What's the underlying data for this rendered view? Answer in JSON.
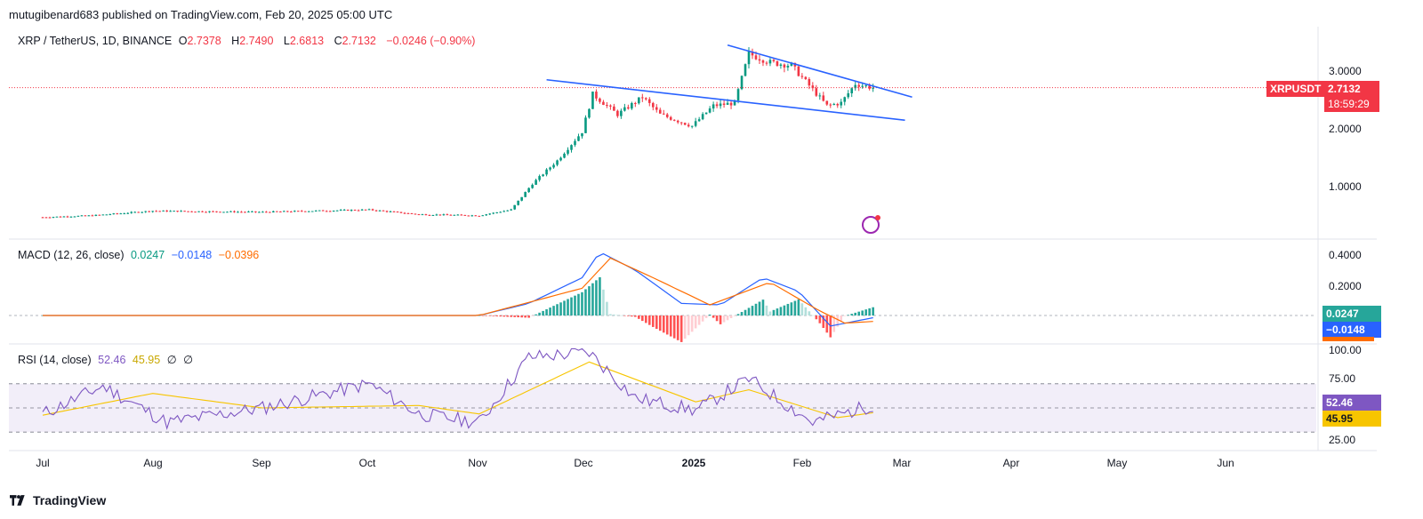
{
  "header": {
    "published": "mutugibenard683 published on TradingView.com, Feb 20, 2025 05:00 UTC"
  },
  "price_legend": {
    "symbol": "XRP / TetherUS, 1D, BINANCE",
    "open_label": "O",
    "open": "2.7378",
    "high_label": "H",
    "high": "2.7490",
    "low_label": "L",
    "low": "2.6813",
    "close_label": "C",
    "close": "2.7132",
    "change": "−0.0246 (−0.90%)"
  },
  "macd_legend": {
    "name": "MACD (12, 26, close)",
    "hist": "0.0247",
    "macd": "−0.0148",
    "signal": "−0.0396"
  },
  "rsi_legend": {
    "name": "RSI (14, close)",
    "rsi": "52.46",
    "ma": "45.95",
    "ph1": "∅",
    "ph2": "∅"
  },
  "price_badges": {
    "ticker": "XRPUSDT",
    "price": "2.7132",
    "countdown": "18:59:29"
  },
  "macd_badges": {
    "hist": "0.0247",
    "macd": "−0.0148"
  },
  "rsi_badges": {
    "rsi": "52.46",
    "ma": "45.95"
  },
  "price_axis": [
    "3.0000",
    "2.0000",
    "1.0000"
  ],
  "macd_axis": [
    "0.4000",
    "0.2000"
  ],
  "rsi_axis": [
    "100.00",
    "75.00",
    "25.00"
  ],
  "months": [
    "Jul",
    "Aug",
    "Sep",
    "Oct",
    "Nov",
    "Dec",
    "2025",
    "Feb",
    "Mar",
    "Apr",
    "May",
    "Jun"
  ],
  "footer": {
    "brand": "TradingView"
  },
  "colors": {
    "up": "#089981",
    "down": "#f23645",
    "macd": "#2962ff",
    "signal": "#ff6d00",
    "rsi": "#7e57c2",
    "rsi_ma": "#f7c500",
    "trendline": "#2962ff"
  },
  "chart_data": [
    {
      "type": "candlestick",
      "symbol": "XRP / TetherUS",
      "interval": "1D",
      "exchange": "BINANCE",
      "last": {
        "open": 2.7378,
        "high": 2.749,
        "low": 2.6813,
        "close": 2.7132
      },
      "ylim": [
        0.2,
        3.8
      ],
      "approx_close_path": [
        {
          "date": "2024-07-01",
          "close": 0.47
        },
        {
          "date": "2024-07-15",
          "close": 0.5
        },
        {
          "date": "2024-08-01",
          "close": 0.58
        },
        {
          "date": "2024-08-15",
          "close": 0.57
        },
        {
          "date": "2024-09-01",
          "close": 0.56
        },
        {
          "date": "2024-09-15",
          "close": 0.58
        },
        {
          "date": "2024-10-01",
          "close": 0.6
        },
        {
          "date": "2024-10-15",
          "close": 0.52
        },
        {
          "date": "2024-11-01",
          "close": 0.5
        },
        {
          "date": "2024-11-10",
          "close": 0.6
        },
        {
          "date": "2024-11-16",
          "close": 1.05
        },
        {
          "date": "2024-11-23",
          "close": 1.45
        },
        {
          "date": "2024-11-30",
          "close": 1.95
        },
        {
          "date": "2024-12-03",
          "close": 2.6
        },
        {
          "date": "2024-12-10",
          "close": 2.25
        },
        {
          "date": "2024-12-17",
          "close": 2.55
        },
        {
          "date": "2024-12-22",
          "close": 2.25
        },
        {
          "date": "2024-12-31",
          "close": 2.05
        },
        {
          "date": "2025-01-06",
          "close": 2.4
        },
        {
          "date": "2025-01-12",
          "close": 2.45
        },
        {
          "date": "2025-01-16",
          "close": 3.3
        },
        {
          "date": "2025-01-22",
          "close": 3.15
        },
        {
          "date": "2025-01-28",
          "close": 3.1
        },
        {
          "date": "2025-02-02",
          "close": 2.75
        },
        {
          "date": "2025-02-07",
          "close": 2.4
        },
        {
          "date": "2025-02-11",
          "close": 2.45
        },
        {
          "date": "2025-02-15",
          "close": 2.78
        },
        {
          "date": "2025-02-20",
          "close": 2.7132
        }
      ],
      "annotations": [
        {
          "type": "trendline",
          "from": {
            "date": "2024-11-20",
            "price": 2.85
          },
          "to": {
            "date": "2025-03-01",
            "price": 2.15
          }
        },
        {
          "type": "trendline",
          "from": {
            "date": "2025-01-10",
            "price": 3.45
          },
          "to": {
            "date": "2025-03-03",
            "price": 2.55
          }
        }
      ]
    },
    {
      "type": "line",
      "title": "MACD (12, 26, close)",
      "latest": {
        "histogram": 0.0247,
        "macd": -0.0148,
        "signal": -0.0396
      },
      "series": [
        {
          "name": "MACD",
          "points": [
            {
              "date": "2024-07-01",
              "value": 0.0
            },
            {
              "date": "2024-11-01",
              "value": 0.0
            },
            {
              "date": "2024-11-15",
              "value": 0.08
            },
            {
              "date": "2024-11-30",
              "value": 0.25
            },
            {
              "date": "2024-12-05",
              "value": 0.42
            },
            {
              "date": "2024-12-15",
              "value": 0.3
            },
            {
              "date": "2024-12-28",
              "value": 0.08
            },
            {
              "date": "2025-01-08",
              "value": 0.07
            },
            {
              "date": "2025-01-20",
              "value": 0.25
            },
            {
              "date": "2025-01-30",
              "value": 0.16
            },
            {
              "date": "2025-02-08",
              "value": -0.07
            },
            {
              "date": "2025-02-20",
              "value": -0.0148
            }
          ]
        },
        {
          "name": "Signal",
          "points": [
            {
              "date": "2024-07-01",
              "value": 0.0
            },
            {
              "date": "2024-11-01",
              "value": 0.0
            },
            {
              "date": "2024-11-30",
              "value": 0.18
            },
            {
              "date": "2024-12-08",
              "value": 0.38
            },
            {
              "date": "2024-12-20",
              "value": 0.25
            },
            {
              "date": "2025-01-05",
              "value": 0.07
            },
            {
              "date": "2025-01-22",
              "value": 0.22
            },
            {
              "date": "2025-02-05",
              "value": 0.03
            },
            {
              "date": "2025-02-12",
              "value": -0.05
            },
            {
              "date": "2025-02-20",
              "value": -0.0396
            }
          ]
        }
      ]
    },
    {
      "type": "line",
      "title": "RSI (14, close)",
      "latest": {
        "rsi": 52.46,
        "rsi_ma": 45.95
      },
      "bands": [
        30,
        50,
        70
      ],
      "ylim": [
        20,
        100
      ],
      "series": [
        {
          "name": "RSI",
          "points": [
            {
              "date": "2024-07-01",
              "value": 45
            },
            {
              "date": "2024-07-18",
              "value": 68
            },
            {
              "date": "2024-08-05",
              "value": 38
            },
            {
              "date": "2024-09-01",
              "value": 50
            },
            {
              "date": "2024-10-01",
              "value": 70
            },
            {
              "date": "2024-10-15",
              "value": 45
            },
            {
              "date": "2024-11-01",
              "value": 38
            },
            {
              "date": "2024-11-15",
              "value": 92
            },
            {
              "date": "2024-12-02",
              "value": 96
            },
            {
              "date": "2024-12-15",
              "value": 58
            },
            {
              "date": "2025-01-01",
              "value": 48
            },
            {
              "date": "2025-01-16",
              "value": 74
            },
            {
              "date": "2025-02-03",
              "value": 38
            },
            {
              "date": "2025-02-20",
              "value": 52.46
            }
          ]
        },
        {
          "name": "RSI-based MA",
          "points": [
            {
              "date": "2024-07-01",
              "value": 44
            },
            {
              "date": "2024-08-01",
              "value": 62
            },
            {
              "date": "2024-09-01",
              "value": 50
            },
            {
              "date": "2024-10-15",
              "value": 52
            },
            {
              "date": "2024-11-01",
              "value": 45
            },
            {
              "date": "2024-12-02",
              "value": 88
            },
            {
              "date": "2025-01-01",
              "value": 55
            },
            {
              "date": "2025-01-16",
              "value": 65
            },
            {
              "date": "2025-02-10",
              "value": 42
            },
            {
              "date": "2025-02-20",
              "value": 45.95
            }
          ]
        }
      ]
    }
  ]
}
